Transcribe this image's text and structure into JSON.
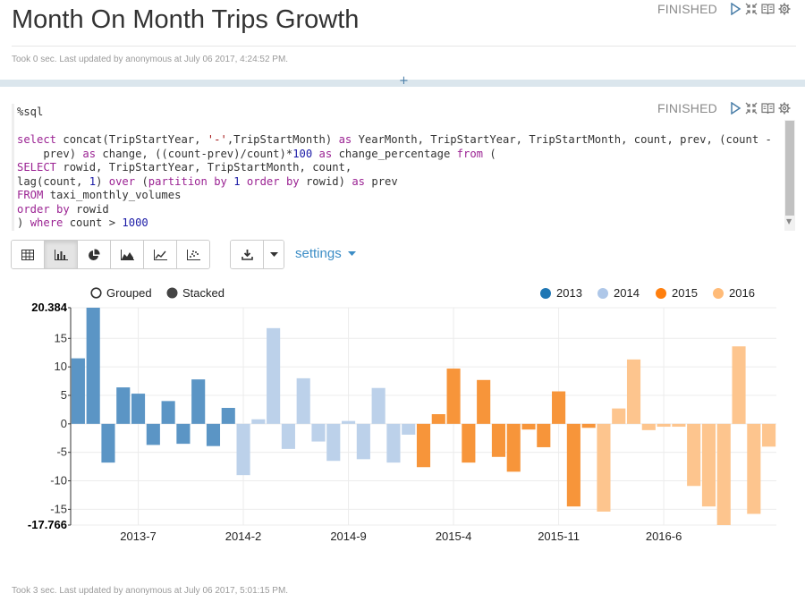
{
  "paragraph1": {
    "title": "Month On Month Trips Growth",
    "status": "FINISHED",
    "meta": "Took 0 sec. Last updated by anonymous at July 06 2017, 4:24:52 PM."
  },
  "paragraph2": {
    "status": "FINISHED",
    "code_lines": [
      "%sql",
      "",
      "select concat(TripStartYear, '-',TripStartMonth) as YearMonth, TripStartYear, TripStartMonth, count, prev, (count -",
      "    prev) as change, ((count-prev)/count)*100 as change_percentage from (",
      "SELECT rowid, TripStartYear, TripStartMonth, count,",
      "lag(count, 1) over (partition by 1 order by rowid) as prev",
      "FROM taxi_monthly_volumes",
      "order by rowid",
      ") where count > 1000"
    ],
    "settings_label": "settings",
    "meta": "Took 3 sec. Last updated by anonymous at July 06 2017, 5:01:15 PM."
  },
  "toolbar": {
    "buttons": [
      "table-icon",
      "bar-chart-icon",
      "pie-chart-icon",
      "area-chart-icon",
      "line-chart-icon",
      "scatter-chart-icon"
    ],
    "active": "bar-chart-icon",
    "download": "download-icon"
  },
  "chart_controls": {
    "grouped_label": "Grouped",
    "stacked_label": "Stacked",
    "selected": "Stacked"
  },
  "colors": {
    "2013": "#5b95c5",
    "2014": "#bcd1ea",
    "2015": "#f7953a",
    "2016": "#fdc58e",
    "legend_2013": "#1f77b4",
    "legend_2014": "#aec7e8",
    "legend_2015": "#ff7f0e",
    "legend_2016": "#ffbb78"
  },
  "chart_data": {
    "type": "bar",
    "series": [
      {
        "name": "2013",
        "values": [
          11.5,
          20.384,
          -6.8,
          6.4,
          5.3,
          -3.7,
          4.0,
          -3.5,
          7.8,
          -3.9,
          2.8
        ]
      },
      {
        "name": "2014",
        "values": [
          -9.0,
          0.8,
          16.8,
          -4.4,
          8.0,
          -3.1,
          -6.5,
          0.5,
          -6.2,
          6.3,
          -6.8,
          -1.9
        ]
      },
      {
        "name": "2015",
        "values": [
          -7.6,
          1.7,
          9.7,
          -6.8,
          7.7,
          -5.8,
          -8.4,
          -1.0,
          -4.1,
          5.7,
          -14.5,
          -0.7
        ]
      },
      {
        "name": "2016",
        "values": [
          -15.4,
          2.7,
          11.3,
          -1.1,
          -0.5,
          -0.5,
          -10.9,
          -14.5,
          -17.766,
          13.6,
          -15.8,
          -4.0
        ]
      }
    ],
    "x_ticks": [
      "2013-7",
      "2014-2",
      "2014-9",
      "2015-4",
      "2015-11",
      "2016-6"
    ],
    "x_tick_index": [
      4,
      11,
      18,
      25,
      32,
      39
    ],
    "y_ticks": [
      "20.384",
      "15",
      "10",
      "5",
      "0",
      "-5",
      "-10",
      "-15",
      "-17.766"
    ],
    "y_tick_values": [
      20.384,
      15,
      10,
      5,
      0,
      -5,
      -10,
      -15,
      -17.766
    ],
    "ylim": [
      -17.766,
      20.384
    ],
    "grid": true,
    "legend_position": "top-right"
  }
}
